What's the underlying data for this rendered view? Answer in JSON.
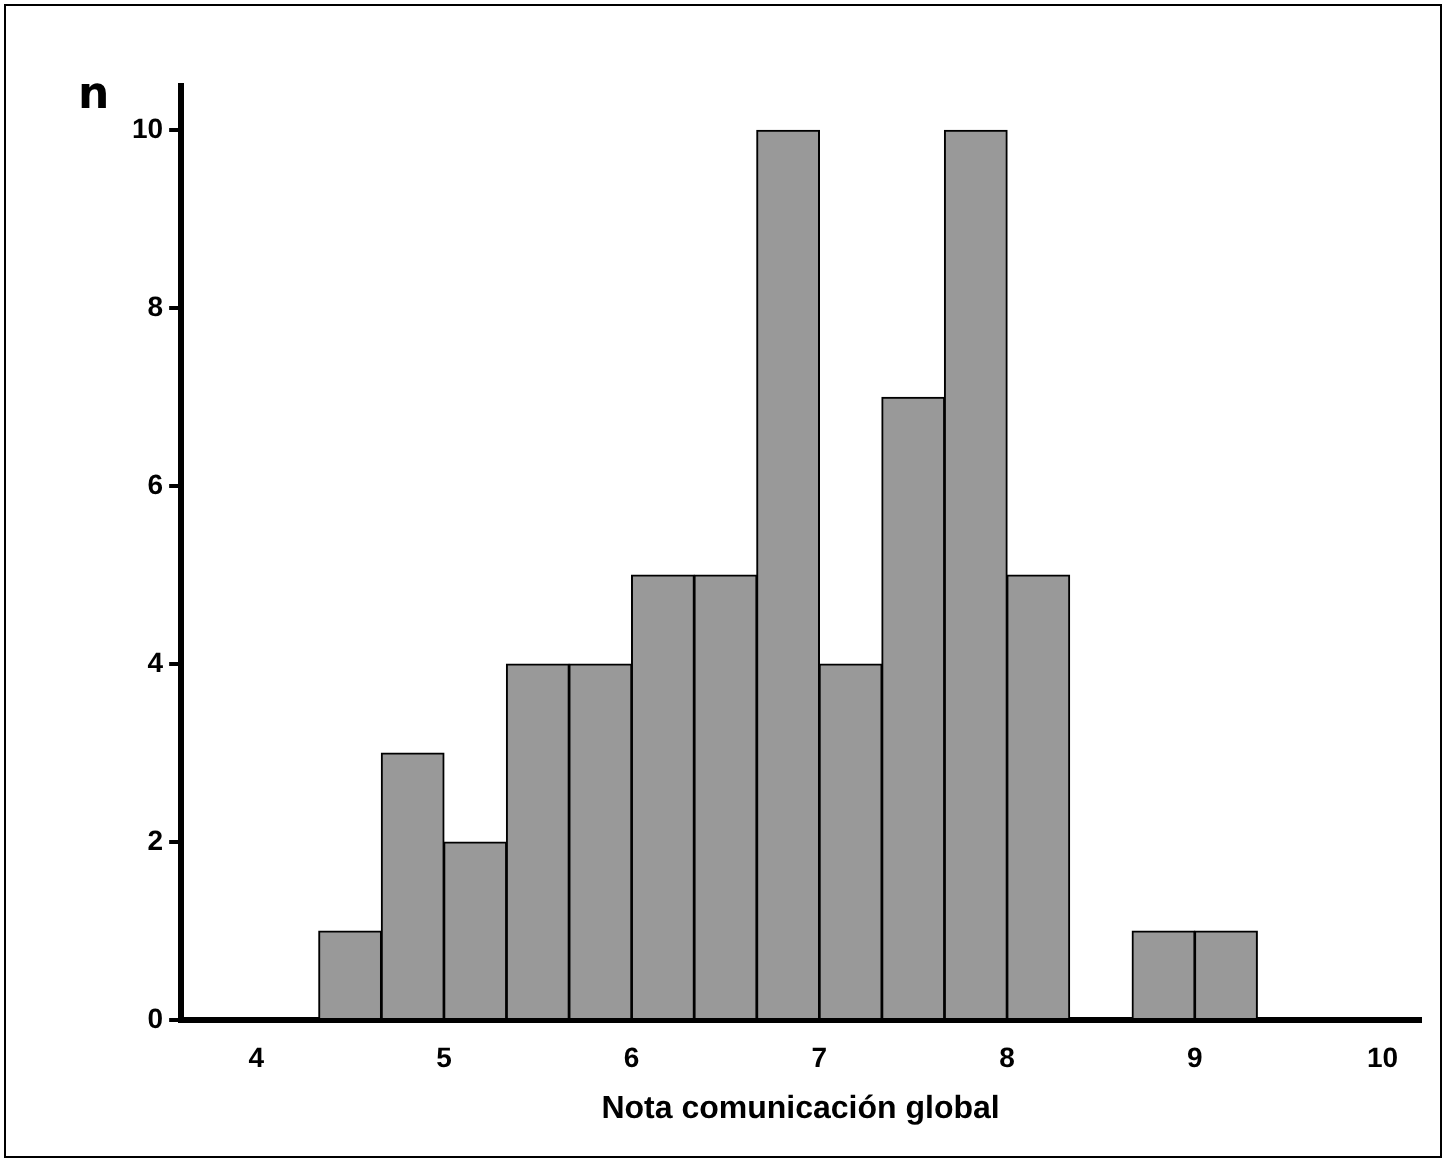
{
  "chart_data": {
    "type": "histogram",
    "xlabel": "Nota comunicación global",
    "ylabel": "n",
    "bins": [
      4.333,
      4.667,
      5,
      5.333,
      5.667,
      6,
      6.333,
      6.667,
      7,
      7.333,
      7.667,
      8,
      8.333,
      8.667,
      9,
      9.333
    ],
    "values": [
      1,
      3,
      2,
      4,
      4,
      5,
      5,
      10,
      4,
      7,
      10,
      5,
      0,
      1,
      1
    ],
    "color": "#999999",
    "xlim": [
      3.6,
      10.2
    ],
    "xticks": [
      4,
      5,
      6,
      7,
      8,
      9,
      10
    ],
    "ylim": [
      0,
      10.5
    ],
    "yticks": [
      0,
      2,
      4,
      6,
      8,
      10
    ],
    "grid": false,
    "legend": false
  }
}
